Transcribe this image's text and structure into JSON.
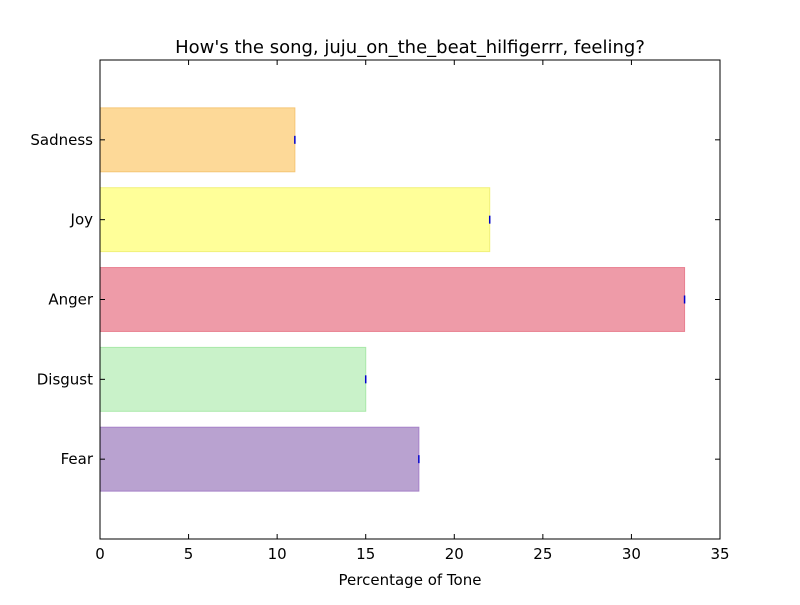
{
  "chart_data": {
    "type": "bar",
    "orientation": "horizontal",
    "title": "How's the song, juju_on_the_beat_hilfigerrr, feeling?",
    "xlabel": "Percentage of Tone",
    "ylabel": "",
    "xlim": [
      0,
      35
    ],
    "xticks": [
      "0",
      "5",
      "10",
      "15",
      "20",
      "25",
      "30",
      "35"
    ],
    "categories": [
      "Fear",
      "Disgust",
      "Anger",
      "Joy",
      "Sadness"
    ],
    "values": [
      18,
      15,
      33,
      22,
      11
    ],
    "colors": [
      "#b9a2d0",
      "#c9f2c9",
      "#ee9ba8",
      "#ffff99",
      "#fdd998"
    ],
    "edge_colors": [
      "#a681c9",
      "#a9e8a9",
      "#e87f90",
      "#f0f07a",
      "#f5c676"
    ],
    "error_marker_color": "#0000cc",
    "grid": false,
    "legend": "none"
  }
}
